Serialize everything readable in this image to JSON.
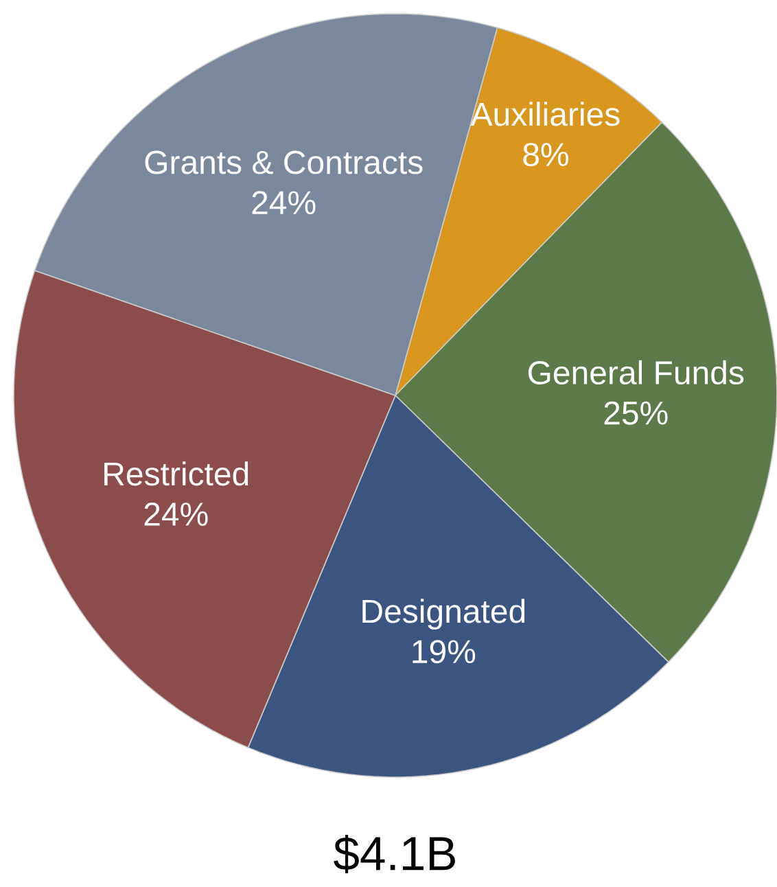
{
  "chart_data": {
    "type": "pie",
    "title": "$4.1B",
    "categories": [
      "Auxiliaries",
      "General Funds",
      "Designated",
      "Restricted",
      "Grants & Contracts"
    ],
    "values": [
      8,
      25,
      19,
      24,
      24
    ],
    "value_labels": [
      "8%",
      "25%",
      "19%",
      "24%",
      "24%"
    ],
    "colors": [
      "#d9961c",
      "#5c7a48",
      "#3b5582",
      "#8c4c4c",
      "#7a889e"
    ]
  }
}
